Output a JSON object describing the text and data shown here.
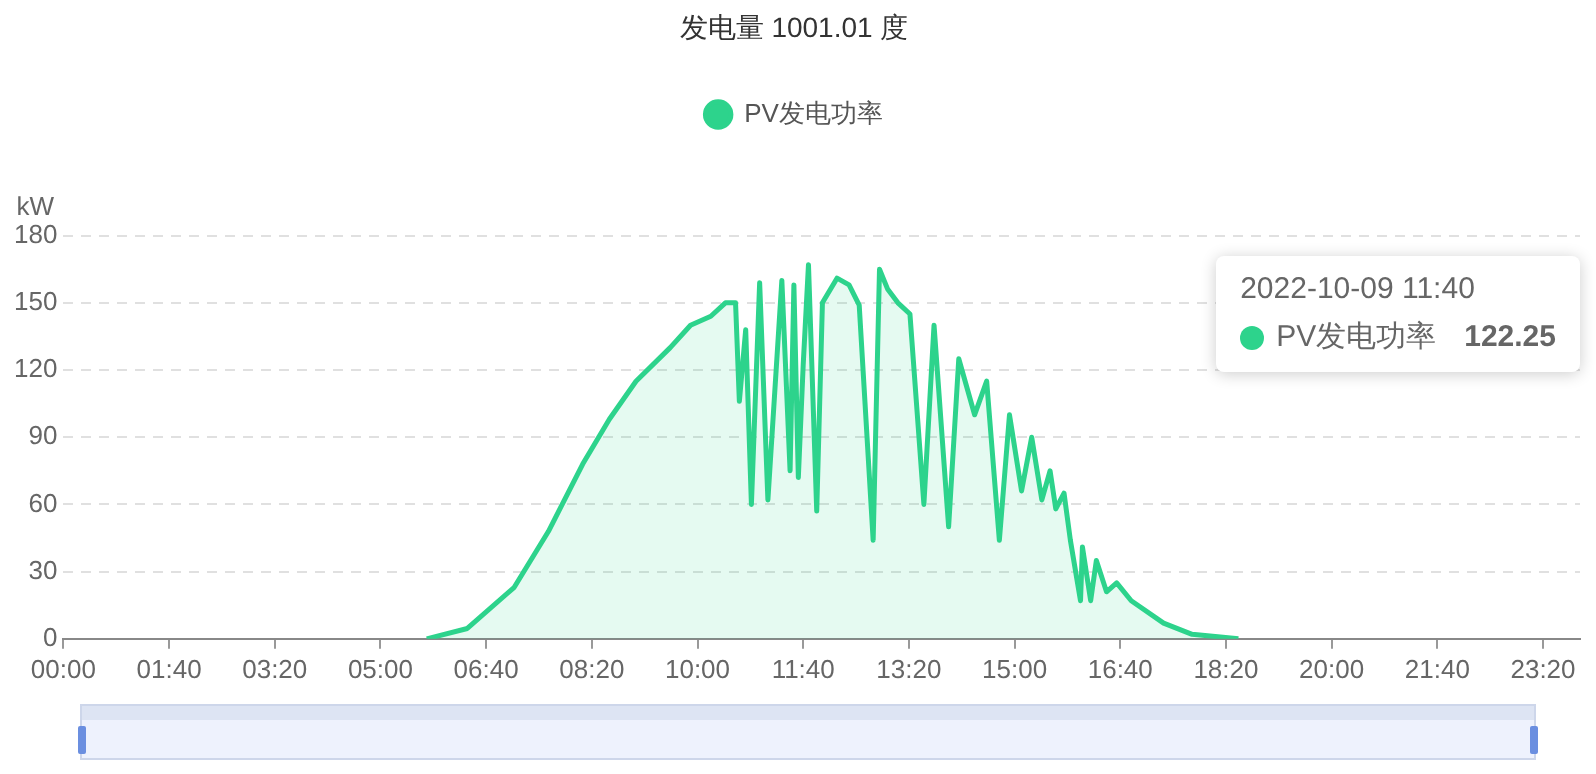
{
  "chart_data": {
    "type": "area",
    "title": "发电量 1001.01 度",
    "ylabel": "kW",
    "legend": "top",
    "grid": "y",
    "xlim": [
      0,
      23.9167
    ],
    "ylim": [
      0,
      180
    ],
    "yticks": [
      0,
      30,
      60,
      90,
      120,
      150,
      180
    ],
    "xticks": [
      {
        "value": 0,
        "label": "00:00"
      },
      {
        "value": 1.6667,
        "label": "01:40"
      },
      {
        "value": 3.3333,
        "label": "03:20"
      },
      {
        "value": 5,
        "label": "05:00"
      },
      {
        "value": 6.6667,
        "label": "06:40"
      },
      {
        "value": 8.3333,
        "label": "08:20"
      },
      {
        "value": 10,
        "label": "10:00"
      },
      {
        "value": 11.6667,
        "label": "11:40"
      },
      {
        "value": 13.3333,
        "label": "13:20"
      },
      {
        "value": 15,
        "label": "15:00"
      },
      {
        "value": 16.6667,
        "label": "16:40"
      },
      {
        "value": 18.3333,
        "label": "18:20"
      },
      {
        "value": 20,
        "label": "20:00"
      },
      {
        "value": 21.6667,
        "label": "21:40"
      },
      {
        "value": 23.3333,
        "label": "23:20"
      }
    ],
    "x": [
      5.73,
      6.37,
      7.11,
      7.65,
      8.19,
      8.61,
      9.03,
      9.57,
      9.89,
      10.21,
      10.44,
      10.6,
      10.66,
      10.76,
      10.85,
      10.98,
      11.11,
      11.33,
      11.46,
      11.52,
      11.59,
      11.6667,
      11.75,
      11.88,
      11.97,
      12.2,
      12.39,
      12.55,
      12.77,
      12.87,
      13.0,
      13.16,
      13.35,
      13.57,
      13.73,
      13.96,
      14.12,
      14.37,
      14.56,
      14.76,
      14.92,
      15.11,
      15.27,
      15.43,
      15.56,
      15.65,
      15.78,
      15.88,
      16.04,
      16.07,
      16.2,
      16.29,
      16.45,
      16.61,
      16.84,
      17.35,
      17.8,
      18.53
    ],
    "series": [
      {
        "name": "PV发电功率",
        "color": "#2dd38c",
        "values": [
          0,
          4.6,
          23,
          48,
          78,
          98,
          115,
          130,
          140,
          144,
          150,
          150,
          106,
          138,
          60,
          159,
          62,
          160,
          75,
          158,
          72,
          122.25,
          167,
          57,
          150,
          161,
          158,
          149,
          44,
          165,
          156,
          150,
          145,
          60,
          140,
          50,
          125,
          100,
          115,
          44,
          100,
          66,
          90,
          62,
          75,
          58,
          65,
          44,
          17,
          41,
          17,
          35,
          21,
          25,
          17,
          7,
          2,
          0
        ]
      }
    ],
    "annotations": [
      "2022-10-09 11:40",
      "PV发电功率",
      "122.25"
    ]
  }
}
